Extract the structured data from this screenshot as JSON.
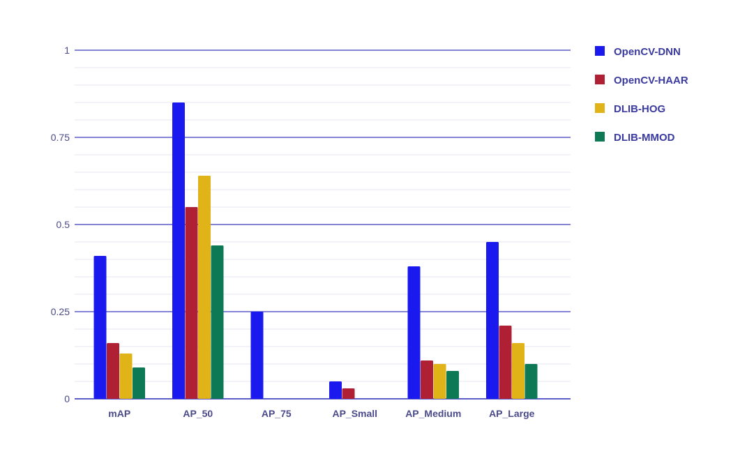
{
  "chart_data": {
    "type": "bar",
    "categories": [
      "mAP",
      "AP_50",
      "AP_75",
      "AP_Small",
      "AP_Medium",
      "AP_Large"
    ],
    "series": [
      {
        "name": "OpenCV-DNN",
        "color": "#1a1aee",
        "values": [
          0.41,
          0.85,
          0.25,
          0.05,
          0.38,
          0.45
        ]
      },
      {
        "name": "OpenCV-HAAR",
        "color": "#b02035",
        "values": [
          0.16,
          0.55,
          0,
          0.03,
          0.11,
          0.21
        ]
      },
      {
        "name": "DLIB-HOG",
        "color": "#e0b418",
        "values": [
          0.13,
          0.64,
          0,
          0,
          0.1,
          0.16
        ]
      },
      {
        "name": "DLIB-MMOD",
        "color": "#0e7a55",
        "values": [
          0.09,
          0.44,
          0,
          0,
          0.08,
          0.1
        ]
      }
    ],
    "ylim": [
      0,
      1
    ],
    "yticks": [
      0,
      0.25,
      0.5,
      0.75,
      1
    ],
    "ytick_labels": [
      "0",
      "0.25",
      "0.5",
      "0.75",
      "1"
    ],
    "grid": true,
    "legend_position": "right",
    "gridline_color": "#5c5cc8",
    "axis_color": "#5c5cc8"
  }
}
